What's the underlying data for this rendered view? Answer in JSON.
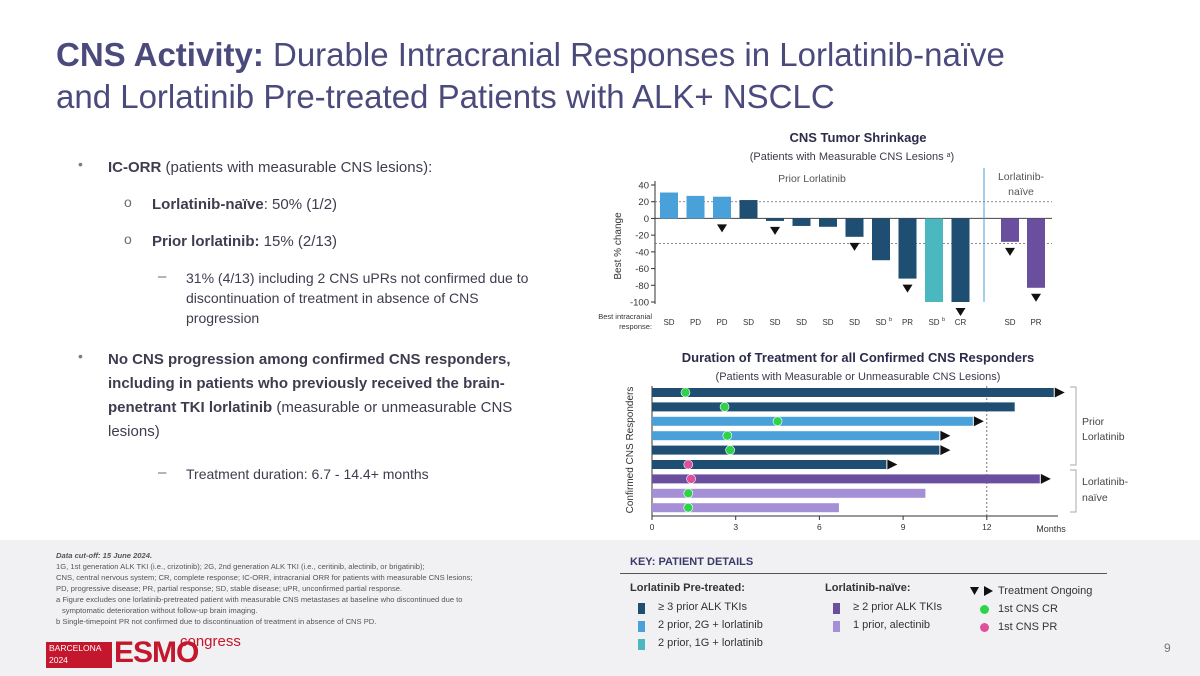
{
  "slide": {
    "title_bold": "CNS Activity:",
    "title_line1": " Durable Intracranial Responses in Lorlatinib-naïve",
    "title_line2": "and Lorlatinib Pre-treated Patients with ALK+ NSCLC",
    "page_number": "9"
  },
  "bullets": {
    "b1_bold": "IC-ORR",
    "b1_rest": " (patients with measurable CNS lesions):",
    "b1_sub1_bold": "Lorlatinib-naïve",
    "b1_sub1_rest": ": 50% (1/2)",
    "b1_sub2_bold": "Prior lorlatinib:",
    "b1_sub2_rest": " 15% (2/13)",
    "b1_dash": "31% (4/13) including 2 CNS uPRs not confirmed due to discontinuation of treatment in absence of CNS progression",
    "b2_bold": "No CNS progression among confirmed CNS responders, including in patients who previously received the brain-penetrant TKI lorlatinib",
    "b2_rest": " (measurable or unmeasurable CNS lesions)",
    "b2_dash": "Treatment duration: 6.7 - 14.4+ months",
    "sub_marker": "o",
    "dash_marker": "–",
    "dot_marker": "•"
  },
  "chart_data": [
    {
      "type": "bar",
      "title": "CNS Tumor Shrinkage",
      "subtitle": "(Patients with Measurable CNS Lesions ",
      "subtitle_sup": "a",
      "subtitle_end": ")",
      "ylabel": "Best % change",
      "ylim": [
        -100,
        40
      ],
      "yticks": [
        40,
        20,
        0,
        -20,
        -40,
        -60,
        -80,
        -100
      ],
      "reference_lines": [
        20,
        -30
      ],
      "group_labels": [
        "Prior Lorlatinib",
        "Lorlatinib-",
        "naïve"
      ],
      "response_row_label_1": "Best intracranial",
      "response_row_label_2": "response:",
      "bars": [
        {
          "value": 31,
          "color": "#4aa0d8",
          "response": "SD",
          "sup": "",
          "ongoing": false
        },
        {
          "value": 27,
          "color": "#4aa0d8",
          "response": "PD",
          "sup": "",
          "ongoing": false
        },
        {
          "value": 26,
          "color": "#4aa0d8",
          "response": "PD",
          "sup": "",
          "ongoing": true
        },
        {
          "value": 22,
          "color": "#1f4e73",
          "response": "SD",
          "sup": "",
          "ongoing": false
        },
        {
          "value": -3,
          "color": "#1f4e73",
          "response": "SD",
          "sup": "",
          "ongoing": true
        },
        {
          "value": -9,
          "color": "#1f4e73",
          "response": "SD",
          "sup": "",
          "ongoing": false
        },
        {
          "value": -10,
          "color": "#1f4e73",
          "response": "SD",
          "sup": "",
          "ongoing": false
        },
        {
          "value": -22,
          "color": "#1f4e73",
          "response": "SD",
          "sup": "",
          "ongoing": true
        },
        {
          "value": -50,
          "color": "#1f4e73",
          "response": "SD",
          "sup": "b",
          "ongoing": false
        },
        {
          "value": -72,
          "color": "#1f4e73",
          "response": "PR",
          "sup": "",
          "ongoing": true
        },
        {
          "value": -100,
          "color": "#4bb8c0",
          "response": "SD",
          "sup": "b",
          "ongoing": false
        },
        {
          "value": -100,
          "color": "#1f4e73",
          "response": "CR",
          "sup": "",
          "ongoing": true
        },
        {
          "value": -28,
          "color": "#6a4f9e",
          "response": "SD",
          "sup": "",
          "ongoing": true
        },
        {
          "value": -83,
          "color": "#6a4f9e",
          "response": "PR",
          "sup": "",
          "ongoing": true
        }
      ]
    },
    {
      "type": "swimmer",
      "title": "Duration of Treatment for all Confirmed CNS Responders",
      "subtitle": "(Patients with Measurable or Unmeasurable CNS Lesions)",
      "ylabel": "Confirmed CNS Responders",
      "xlabel": "Months",
      "xlim": [
        0,
        14.4
      ],
      "xticks": [
        0,
        3,
        6,
        9,
        12
      ],
      "reference_line": 12,
      "group_labels_prior": [
        "Prior",
        "Lorlatinib"
      ],
      "group_labels_naive": [
        "Lorlatinib-",
        "naïve"
      ],
      "rows": [
        {
          "duration": 14.4,
          "color": "#1f4e73",
          "event_month": 1.2,
          "event": "CR",
          "ongoing": true
        },
        {
          "duration": 13.0,
          "color": "#1f4e73",
          "event_month": 2.6,
          "event": "CR",
          "ongoing": false
        },
        {
          "duration": 11.5,
          "color": "#4aa0d8",
          "event_month": 4.5,
          "event": "CR",
          "ongoing": true
        },
        {
          "duration": 10.3,
          "color": "#4aa0d8",
          "event_month": 2.7,
          "event": "CR",
          "ongoing": true
        },
        {
          "duration": 10.3,
          "color": "#1f4e73",
          "event_month": 2.8,
          "event": "CR",
          "ongoing": true
        },
        {
          "duration": 8.4,
          "color": "#1f4e73",
          "event_month": 1.3,
          "event": "PR",
          "ongoing": true
        },
        {
          "duration": 13.9,
          "color": "#6a4f9e",
          "event_month": 1.4,
          "event": "PR",
          "ongoing": true
        },
        {
          "duration": 9.8,
          "color": "#a58fd6",
          "event_month": 1.3,
          "event": "CR",
          "ongoing": false
        },
        {
          "duration": 6.7,
          "color": "#a58fd6",
          "event_month": 1.3,
          "event": "CR",
          "ongoing": false
        }
      ]
    }
  ],
  "footnotes": {
    "cutoff": "Data cut-off: 15 June 2024.",
    "line1": "1G, 1st generation ALK TKI (i.e., crizotinib); 2G, 2nd generation ALK TKI (i.e., ceritinib, alectinib, or brigatinib);",
    "line2": "CNS, central nervous system; CR, complete response; IC-ORR, intracranial ORR for patients with measurable CNS lesions;",
    "line3": "PD, progressive disease; PR, partial response; SD, stable disease; uPR, unconfirmed partial response.",
    "line4": "a Figure excludes one lorlatinib-pretreated patient with measurable CNS metastases at baseline who discontinued due to",
    "line5": "symptomatic deterioration without follow-up brain imaging.",
    "line6": "b Single-timepoint PR not confirmed due to discontinuation of treatment in absence of CNS PD."
  },
  "key": {
    "heading": "KEY: PATIENT DETAILS",
    "pre_heading": "Lorlatinib Pre-treated:",
    "pre_items": [
      {
        "label": "≥ 3 prior ALK TKIs",
        "color": "#1f4e73"
      },
      {
        "label": "2 prior, 2G + lorlatinib",
        "color": "#4aa0d8"
      },
      {
        "label": "2 prior, 1G + lorlatinib",
        "color": "#4bb8c0"
      }
    ],
    "naive_heading": "Lorlatinib-naïve:",
    "naive_items": [
      {
        "label": "≥ 2 prior ALK TKIs",
        "color": "#6a4f9e"
      },
      {
        "label": "1 prior, alectinib",
        "color": "#a58fd6"
      }
    ],
    "ongoing_label": "Treatment Ongoing",
    "cr_label": "1st CNS CR",
    "pr_label": "1st CNS PR",
    "cr_color": "#2fd34a",
    "pr_color": "#e0509a"
  },
  "brand": {
    "city": "BARCELONA",
    "year": "2024",
    "esmo": "ESMO",
    "congress": "congress"
  }
}
